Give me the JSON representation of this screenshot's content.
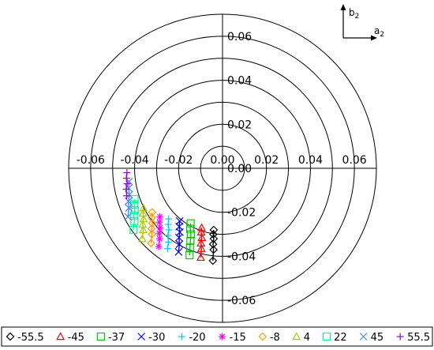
{
  "chart_data": {
    "type": "scatter",
    "title": "",
    "polar": true,
    "xlabel": "a2",
    "ylabel": "b2",
    "xlim": [
      -0.07,
      0.07
    ],
    "ylim": [
      -0.07,
      0.07
    ],
    "ring_radii": [
      0.01,
      0.02,
      0.03,
      0.04,
      0.05,
      0.06,
      0.07
    ],
    "x_tick_labels": [
      "-0.06",
      "-0.04",
      "-0.02",
      "0.00",
      "0.02",
      "0.04",
      "0.06"
    ],
    "y_tick_labels": [
      "0.06",
      "0.04",
      "0.02",
      "0.00",
      "-0.02",
      "-0.04",
      "-0.06"
    ],
    "compass": {
      "x_label": "a",
      "x_sub": "2",
      "y_label": "b",
      "y_sub": "2"
    },
    "legend_position": "bottom",
    "series": [
      {
        "name": "-55.5",
        "marker": "diamond",
        "color": "#000000",
        "x": [
          -0.004,
          -0.0042,
          -0.004,
          -0.0043,
          -0.0041,
          -0.0044
        ],
        "y": [
          -0.028,
          -0.03,
          -0.032,
          -0.0345,
          -0.037,
          -0.042
        ]
      },
      {
        "name": "-45",
        "marker": "triangle",
        "color": "#ff0000",
        "x": [
          -0.0095,
          -0.0097,
          -0.0094,
          -0.0098,
          -0.0096,
          -0.0099
        ],
        "y": [
          -0.027,
          -0.029,
          -0.0315,
          -0.034,
          -0.0365,
          -0.0405
        ]
      },
      {
        "name": "-37",
        "marker": "square",
        "color": "#00cc00",
        "x": [
          -0.0145,
          -0.0147,
          -0.0144,
          -0.0146,
          -0.0148,
          -0.015
        ],
        "y": [
          -0.025,
          -0.0275,
          -0.03,
          -0.033,
          -0.036,
          -0.0395
        ]
      },
      {
        "name": "-30",
        "marker": "x",
        "color": "#0000ff",
        "x": [
          -0.0195,
          -0.0197,
          -0.0194,
          -0.0198,
          -0.0196,
          -0.02
        ],
        "y": [
          -0.024,
          -0.0265,
          -0.029,
          -0.0315,
          -0.0345,
          -0.038
        ]
      },
      {
        "name": "-20",
        "marker": "plus",
        "color": "#00ccff",
        "x": [
          -0.0245,
          -0.0247,
          -0.0244,
          -0.0248,
          -0.0246,
          -0.025
        ],
        "y": [
          -0.023,
          -0.0255,
          -0.028,
          -0.0305,
          -0.0335,
          -0.0365
        ]
      },
      {
        "name": "-15",
        "marker": "asterisk",
        "color": "#ff00ff",
        "x": [
          -0.0285,
          -0.0287,
          -0.0284,
          -0.0288,
          -0.0286,
          -0.029
        ],
        "y": [
          -0.022,
          -0.0245,
          -0.027,
          -0.0295,
          -0.032,
          -0.0355
        ]
      },
      {
        "name": "-8",
        "marker": "diamond",
        "color": "#ff9900",
        "x": [
          -0.032,
          -0.0322,
          -0.0319,
          -0.0323,
          -0.0321,
          -0.0325
        ],
        "y": [
          -0.02,
          -0.0225,
          -0.025,
          -0.0275,
          -0.03,
          -0.034
        ]
      },
      {
        "name": "4",
        "marker": "triangle",
        "color": "#aacc00",
        "x": [
          -0.036,
          -0.0362,
          -0.0359,
          -0.0363,
          -0.0361,
          -0.0365
        ],
        "y": [
          -0.018,
          -0.0205,
          -0.023,
          -0.0255,
          -0.028,
          -0.032
        ]
      },
      {
        "name": "22",
        "marker": "square",
        "color": "#00ff99",
        "x": [
          -0.04,
          -0.0402,
          -0.0399,
          -0.0403,
          -0.0401,
          -0.0405
        ],
        "y": [
          -0.014,
          -0.0165,
          -0.019,
          -0.0215,
          -0.024,
          -0.028
        ]
      },
      {
        "name": "45",
        "marker": "x",
        "color": "#4488ff",
        "x": [
          -0.0425,
          -0.0427,
          -0.0424,
          -0.0428,
          -0.0426,
          -0.043
        ],
        "y": [
          -0.006,
          -0.009,
          -0.012,
          -0.015,
          -0.018,
          -0.022
        ]
      },
      {
        "name": "55.5",
        "marker": "plus",
        "color": "#9900cc",
        "x": [
          -0.0435,
          -0.0437,
          -0.0434,
          -0.0438,
          -0.0436
        ],
        "y": [
          -0.002,
          -0.0045,
          -0.007,
          -0.0095,
          -0.0125
        ]
      }
    ]
  }
}
